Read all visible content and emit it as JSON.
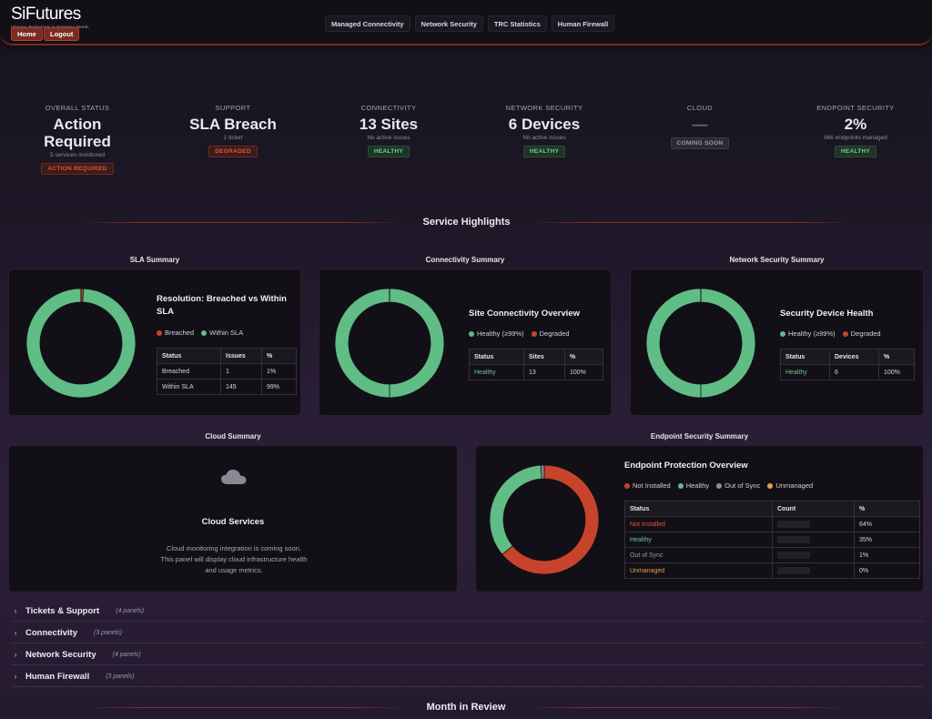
{
  "header": {
    "logo": "SiFutures",
    "logo_tagline": "Infusing Technology in Business Needs",
    "home_label": "Home",
    "logout_label": "Logout",
    "nav": [
      "Managed Connectivity",
      "Network Security",
      "TRC Statistics",
      "Human Firewall"
    ]
  },
  "kpis": [
    {
      "label": "Overall Status",
      "value": "Action Required",
      "sub": "5 services monitored",
      "badge": "ACTION REQUIRED"
    },
    {
      "label": "Support",
      "value": "SLA Breach",
      "sub": "1 ticket",
      "badge": "DEGRADED"
    },
    {
      "label": "Connectivity",
      "value": "13 Sites",
      "sub": "No active issues",
      "badge": "HEALTHY"
    },
    {
      "label": "Network Security",
      "value": "6 Devices",
      "sub": "No active issues",
      "badge": "HEALTHY"
    },
    {
      "label": "Cloud",
      "value": "—",
      "sub": "",
      "badge": "COMING SOON"
    },
    {
      "label": "Endpoint Security",
      "value": "2%",
      "sub": "966 endpoints managed",
      "badge": "HEALTHY"
    }
  ],
  "sections": {
    "service_highlights": "Service Highlights",
    "month_in_review": "Month in Review"
  },
  "sla": {
    "panel_title": "SLA Summary",
    "heading": "Resolution: Breached vs Within SLA",
    "legend": [
      "Breached",
      "Within SLA"
    ],
    "columns": [
      "Status",
      "Issues",
      "%"
    ],
    "rows": [
      [
        "Breached",
        "1",
        "1%"
      ],
      [
        "Within SLA",
        "145",
        "99%"
      ]
    ]
  },
  "connectivity": {
    "panel_title": "Connectivity Summary",
    "heading": "Site Connectivity Overview",
    "legend": [
      "Healthy (≥99%)",
      "Degraded"
    ],
    "columns": [
      "Status",
      "Sites",
      "%"
    ],
    "rows": [
      [
        "Healthy",
        "13",
        "100%"
      ]
    ]
  },
  "netsec": {
    "panel_title": "Network Security Summary",
    "heading": "Security Device Health",
    "legend": [
      "Healthy (≥99%)",
      "Degraded"
    ],
    "columns": [
      "Status",
      "Devices",
      "%"
    ],
    "rows": [
      [
        "Healthy",
        "6",
        "100%"
      ]
    ]
  },
  "cloud": {
    "panel_title": "Cloud Summary",
    "heading": "Cloud Services",
    "text_1": "Cloud monitoring integration is coming soon.",
    "text_2": "This panel will display cloud infrastructure health",
    "text_3": "and usage metrics."
  },
  "endpoint": {
    "panel_title": "Endpoint Security Summary",
    "heading": "Endpoint Protection Overview",
    "legend": [
      "Not Installed",
      "Healthy",
      "Out of Sync",
      "Unmanaged"
    ],
    "columns": [
      "Status",
      "Count",
      "%"
    ],
    "rows": [
      [
        "Not Installed",
        "64%"
      ],
      [
        "Healthy",
        "35%"
      ],
      [
        "Out of Sync",
        "1%"
      ],
      [
        "Unmanaged",
        "0%"
      ]
    ]
  },
  "chart_data": [
    {
      "type": "pie",
      "title": "Resolution: Breached vs Within SLA",
      "categories": [
        "Breached",
        "Within SLA"
      ],
      "values": [
        1,
        145
      ],
      "colors": [
        "#c8432b",
        "#5fbd85"
      ],
      "legend": "right"
    },
    {
      "type": "pie",
      "title": "Site Connectivity Overview",
      "categories": [
        "Healthy (≥99%)",
        "Degraded"
      ],
      "values": [
        13,
        0
      ],
      "colors": [
        "#5fbd85",
        "#c8432b"
      ],
      "legend": "right"
    },
    {
      "type": "pie",
      "title": "Security Device Health",
      "categories": [
        "Healthy (≥99%)",
        "Degraded"
      ],
      "values": [
        6,
        0
      ],
      "colors": [
        "#5fbd85",
        "#c8432b"
      ],
      "legend": "right"
    },
    {
      "type": "pie",
      "title": "Endpoint Protection Overview",
      "categories": [
        "Not Installed",
        "Healthy",
        "Out of Sync",
        "Unmanaged"
      ],
      "values": [
        64,
        35,
        1,
        0
      ],
      "colors": [
        "#c8432b",
        "#5fbd85",
        "#8e8c94",
        "#e2a24a"
      ],
      "legend": "right"
    }
  ],
  "collapsibles": [
    {
      "label": "Tickets & Support",
      "count": "(4 panels)"
    },
    {
      "label": "Connectivity",
      "count": "(3 panels)"
    },
    {
      "label": "Network Security",
      "count": "(4 panels)"
    },
    {
      "label": "Human Firewall",
      "count": "(3 panels)"
    }
  ],
  "colors": {
    "healthy": "#5fbd85",
    "breached": "#c8432b",
    "out_of_sync": "#8e8c94",
    "unmanaged": "#e2a24a",
    "accent": "#7d2a22"
  },
  "icons": {
    "cloud": "cloud-icon",
    "chevron": "chevron-right-icon"
  }
}
